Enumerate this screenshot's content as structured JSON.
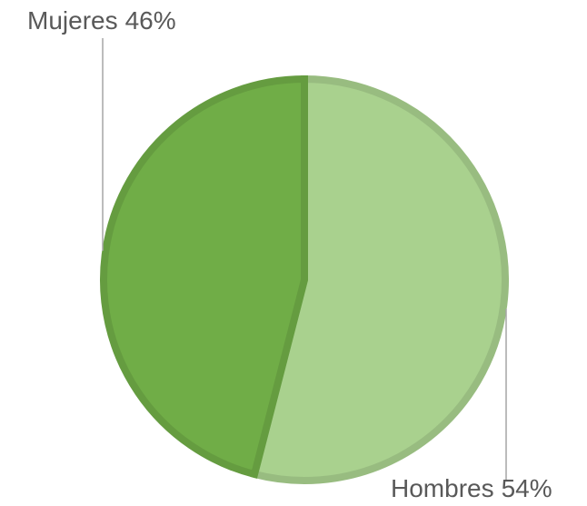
{
  "chart_data": {
    "type": "pie",
    "categories": [
      "Hombres",
      "Mujeres"
    ],
    "values": [
      54,
      46
    ],
    "value_labels": [
      "54%",
      "46%"
    ],
    "colors": [
      "#a9d18e",
      "#70ad47"
    ]
  }
}
